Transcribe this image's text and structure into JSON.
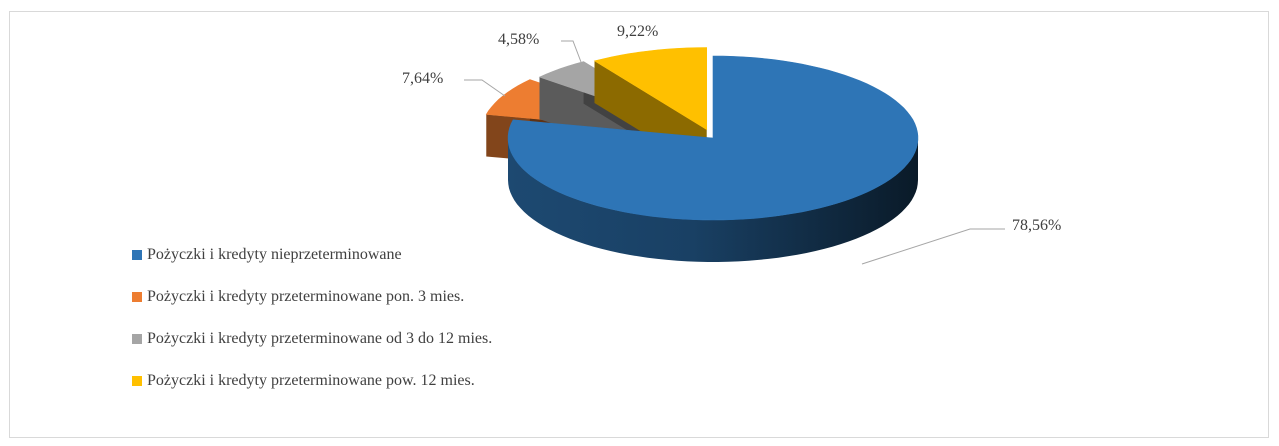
{
  "chart_data": {
    "type": "pie",
    "title": "",
    "categories": [
      "Pożyczki i kredyty nieprzeterminowane",
      "Pożyczki i kredyty przeterminowane pon. 3 mies.",
      "Pożyczki i kredyty przeterminowane od 3 do 12 mies.",
      "Pożyczki i kredyty przeterminowane pow. 12 mies."
    ],
    "values": [
      78.56,
      7.64,
      4.58,
      9.22
    ],
    "data_labels": [
      "78,56%",
      "7,64%",
      "4,58%",
      "9,22%"
    ],
    "colors": [
      "#2e75b6",
      "#ed7d31",
      "#a5a5a5",
      "#ffc000"
    ],
    "style": "3d-exploded-pie",
    "legend_position": "left"
  }
}
